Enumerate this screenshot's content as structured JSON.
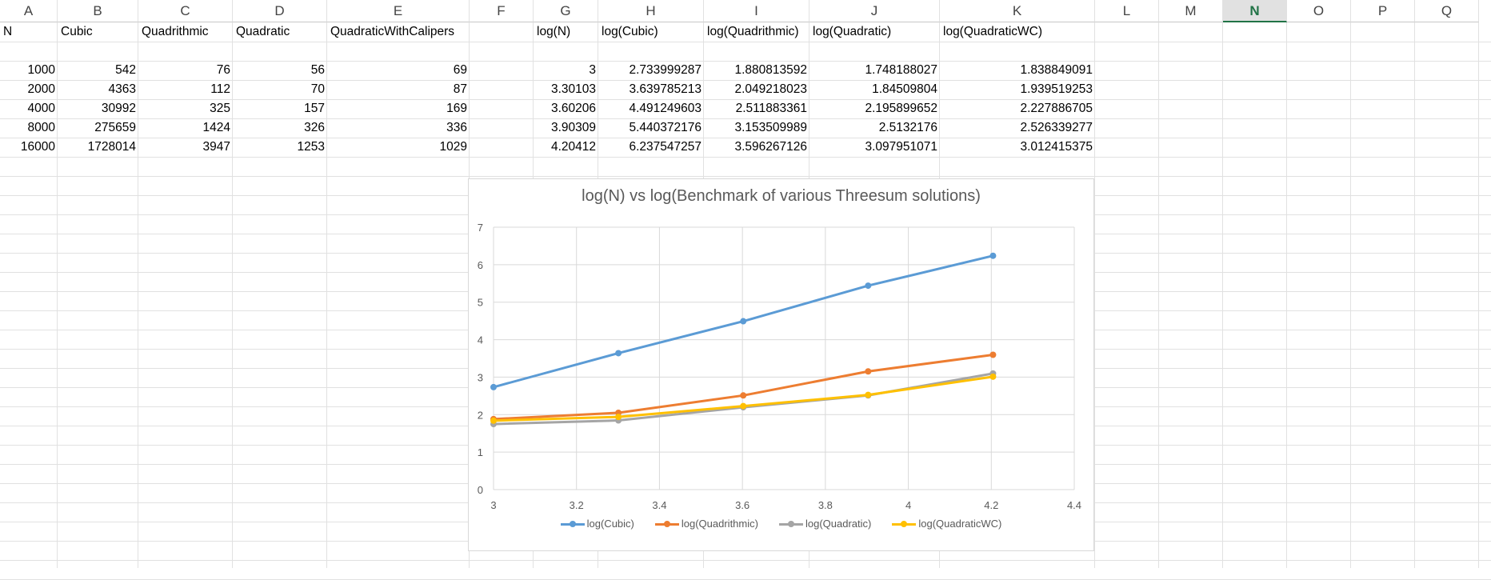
{
  "columns": [
    "A",
    "B",
    "C",
    "D",
    "E",
    "F",
    "G",
    "H",
    "I",
    "J",
    "K",
    "L",
    "M",
    "N",
    "O",
    "P",
    "Q"
  ],
  "active_column": "N",
  "headers": {
    "A": "N",
    "B": "Cubic",
    "C": "Quadrithmic",
    "D": "Quadratic",
    "E": "QuadraticWithCalipers",
    "G": "log(N)",
    "H": "log(Cubic)",
    "I": "log(Quadrithmic)",
    "J": "log(Quadratic)",
    "K": "log(QuadraticWC)"
  },
  "rows": [
    [
      "1000",
      "542",
      "76",
      "56",
      "69",
      "3",
      "2.733999287",
      "1.880813592",
      "1.748188027",
      "1.838849091"
    ],
    [
      "2000",
      "4363",
      "112",
      "70",
      "87",
      "3.30103",
      "3.639785213",
      "2.049218023",
      "1.84509804",
      "1.939519253"
    ],
    [
      "4000",
      "30992",
      "325",
      "157",
      "169",
      "3.60206",
      "4.491249603",
      "2.511883361",
      "2.195899652",
      "2.227886705"
    ],
    [
      "8000",
      "275659",
      "1424",
      "326",
      "336",
      "3.90309",
      "5.440372176",
      "3.153509989",
      "2.5132176",
      "2.526339277"
    ],
    [
      "16000",
      "1728014",
      "3947",
      "1253",
      "1029",
      "4.20412",
      "6.237547257",
      "3.596267126",
      "3.097951071",
      "3.012415375"
    ]
  ],
  "chart_data": {
    "type": "line",
    "title": "log(N) vs log(Benchmark of various Threesum solutions)",
    "x": [
      3,
      3.30103,
      3.60206,
      3.90309,
      4.20412
    ],
    "xlim": [
      3,
      4.4
    ],
    "ylim": [
      0,
      7
    ],
    "x_ticks": [
      "3",
      "3.2",
      "3.4",
      "3.6",
      "3.8",
      "4",
      "4.2",
      "4.4"
    ],
    "y_ticks": [
      "0",
      "1",
      "2",
      "3",
      "4",
      "5",
      "6",
      "7"
    ],
    "grid": true,
    "legend_position": "bottom",
    "series": [
      {
        "name": "log(Cubic)",
        "color": "#5b9bd5",
        "values": [
          2.733999287,
          3.639785213,
          4.491249603,
          5.440372176,
          6.237547257
        ]
      },
      {
        "name": "log(Quadrithmic)",
        "color": "#ed7d31",
        "values": [
          1.880813592,
          2.049218023,
          2.511883361,
          3.153509989,
          3.596267126
        ]
      },
      {
        "name": "log(Quadratic)",
        "color": "#a5a5a5",
        "values": [
          1.748188027,
          1.84509804,
          2.195899652,
          2.5132176,
          3.097951071
        ]
      },
      {
        "name": "log(QuadraticWC)",
        "color": "#ffc000",
        "values": [
          1.838849091,
          1.939519253,
          2.227886705,
          2.526339277,
          3.012415375
        ]
      }
    ]
  }
}
